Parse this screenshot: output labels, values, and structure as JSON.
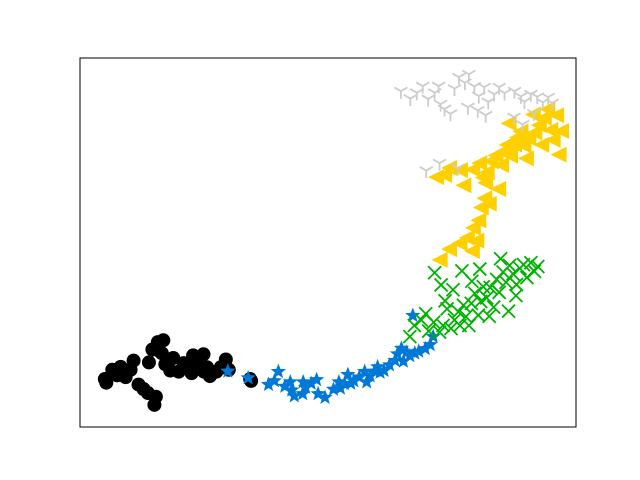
{
  "chart_data": {
    "type": "scatter",
    "title": "",
    "xlabel": "",
    "ylabel": "",
    "xlim": [
      0,
      100
    ],
    "ylim": [
      0,
      100
    ],
    "axes_ticks": false,
    "grid": false,
    "legend": "none",
    "series": [
      {
        "marker": "circle",
        "color": "#000000",
        "points": [
          [
            5.0,
            13.0
          ],
          [
            5.3,
            12.0
          ],
          [
            6.5,
            15.5
          ],
          [
            7.5,
            14.0
          ],
          [
            8.2,
            16.3
          ],
          [
            9.2,
            13.5
          ],
          [
            10.2,
            15.5
          ],
          [
            10.8,
            18.0
          ],
          [
            11.8,
            11.5
          ],
          [
            12.8,
            10.3
          ],
          [
            13.7,
            9.2
          ],
          [
            15.0,
            6.0
          ],
          [
            15.3,
            8.2
          ],
          [
            13.9,
            17.5
          ],
          [
            14.6,
            21.0
          ],
          [
            15.7,
            23.0
          ],
          [
            16.5,
            20.0
          ],
          [
            17.2,
            17.0
          ],
          [
            18.2,
            15.3
          ],
          [
            18.8,
            18.7
          ],
          [
            19.9,
            15.0
          ],
          [
            20.9,
            17.3
          ],
          [
            22.0,
            16.2
          ],
          [
            22.5,
            14.6
          ],
          [
            23.0,
            19.0
          ],
          [
            24.0,
            17.5
          ],
          [
            24.9,
            19.7
          ],
          [
            25.6,
            16.2
          ],
          [
            26.2,
            13.8
          ],
          [
            27.5,
            15.0
          ],
          [
            28.4,
            16.2
          ],
          [
            29.4,
            18.3
          ],
          [
            30.0,
            15.5
          ],
          [
            16.8,
            23.5
          ],
          [
            16.0,
            20.6
          ],
          [
            22.8,
            19.4
          ],
          [
            25.0,
            15.0
          ],
          [
            34.5,
            12.5
          ],
          [
            34.3,
            13.0
          ]
        ]
      },
      {
        "marker": "star",
        "color": "#0078d7",
        "points": [
          [
            29.8,
            15.1
          ],
          [
            33.9,
            13.3
          ],
          [
            38.0,
            11.5
          ],
          [
            39.2,
            12.5
          ],
          [
            40.0,
            15.0
          ],
          [
            41.3,
            11.0
          ],
          [
            42.4,
            12.2
          ],
          [
            43.2,
            8.4
          ],
          [
            42.7,
            10.0
          ],
          [
            44.9,
            9.0
          ],
          [
            45.5,
            10.7
          ],
          [
            45.0,
            12.2
          ],
          [
            46.6,
            11.8
          ],
          [
            47.7,
            12.8
          ],
          [
            48.0,
            9.0
          ],
          [
            49.4,
            8.0
          ],
          [
            51.1,
            10.2
          ],
          [
            52.2,
            12.2
          ],
          [
            52.5,
            10.5
          ],
          [
            53.3,
            11.7
          ],
          [
            54.0,
            14.2
          ],
          [
            54.6,
            11.8
          ],
          [
            55.2,
            12.5
          ],
          [
            56.3,
            13.5
          ],
          [
            57.4,
            15.0
          ],
          [
            57.8,
            12.2
          ],
          [
            58.5,
            13.8
          ],
          [
            59.4,
            15.1
          ],
          [
            60.0,
            16.3
          ],
          [
            60.5,
            14.8
          ],
          [
            61.3,
            15.3
          ],
          [
            62.4,
            16.8
          ],
          [
            63.5,
            18.0
          ],
          [
            64.0,
            19.8
          ],
          [
            64.8,
            21.3
          ],
          [
            65.9,
            20.3
          ],
          [
            66.5,
            19.3
          ],
          [
            67.5,
            20.0
          ],
          [
            69.6,
            21.2
          ],
          [
            70.6,
            22.3
          ],
          [
            71.2,
            24.5
          ],
          [
            67.1,
            30.2
          ],
          [
            68.3,
            20.5
          ],
          [
            65.2,
            17.8
          ]
        ]
      },
      {
        "marker": "x",
        "color": "#00b200",
        "points": [
          [
            66.5,
            24.5
          ],
          [
            67.4,
            27.5
          ],
          [
            68.8,
            29.0
          ],
          [
            69.7,
            30.7
          ],
          [
            70.3,
            26.0
          ],
          [
            71.3,
            28.4
          ],
          [
            72.5,
            25.7
          ],
          [
            73.2,
            27.5
          ],
          [
            74.0,
            32.0
          ],
          [
            74.8,
            26.7
          ],
          [
            75.5,
            29.0
          ],
          [
            76.3,
            31.2
          ],
          [
            76.6,
            27.5
          ],
          [
            77.3,
            33.0
          ],
          [
            77.8,
            29.9
          ],
          [
            78.4,
            27.5
          ],
          [
            78.9,
            33.5
          ],
          [
            79.6,
            36.2
          ],
          [
            80.3,
            30.3
          ],
          [
            80.8,
            34.0
          ],
          [
            81.3,
            38.0
          ],
          [
            82.0,
            35.0
          ],
          [
            82.7,
            37.8
          ],
          [
            83.4,
            32.5
          ],
          [
            84.0,
            40.0
          ],
          [
            84.5,
            36.5
          ],
          [
            85.3,
            42.0
          ],
          [
            85.9,
            39.2
          ],
          [
            86.6,
            43.8
          ],
          [
            87.3,
            41.5
          ],
          [
            88.0,
            38.6
          ],
          [
            88.7,
            43.0
          ],
          [
            89.4,
            44.0
          ],
          [
            90.1,
            40.5
          ],
          [
            90.9,
            44.5
          ],
          [
            91.6,
            42.2
          ],
          [
            92.3,
            43.5
          ],
          [
            71.5,
            41.8
          ],
          [
            72.8,
            38.5
          ],
          [
            73.6,
            34.2
          ],
          [
            75.2,
            37.2
          ],
          [
            79.0,
            39.5
          ],
          [
            82.5,
            30.0
          ],
          [
            84.8,
            45.6
          ],
          [
            86.4,
            31.4
          ],
          [
            87.9,
            35.6
          ],
          [
            77.0,
            42.3
          ],
          [
            80.6,
            42.8
          ]
        ]
      },
      {
        "marker": "triangle-left",
        "color": "#ffd000",
        "points": [
          [
            72.5,
            45.3
          ],
          [
            74.4,
            48.2
          ],
          [
            76.5,
            49.8
          ],
          [
            78.0,
            51.3
          ],
          [
            79.0,
            47.7
          ],
          [
            79.9,
            50.5
          ],
          [
            79.2,
            54.0
          ],
          [
            80.3,
            56.0
          ],
          [
            80.8,
            59.5
          ],
          [
            81.5,
            62.0
          ],
          [
            82.4,
            60.5
          ],
          [
            81.7,
            66.2
          ],
          [
            81.2,
            67.6
          ],
          [
            82.0,
            69.0
          ],
          [
            71.8,
            67.7
          ],
          [
            73.4,
            68.3
          ],
          [
            74.4,
            70.2
          ],
          [
            76.6,
            69.6
          ],
          [
            77.3,
            65.5
          ],
          [
            79.1,
            69.8
          ],
          [
            80.5,
            71.5
          ],
          [
            82.8,
            72.0
          ],
          [
            83.8,
            73.6
          ],
          [
            84.9,
            71.0
          ],
          [
            85.3,
            74.7
          ],
          [
            86.0,
            76.5
          ],
          [
            86.7,
            73.5
          ],
          [
            87.5,
            76.5
          ],
          [
            88.1,
            78.5
          ],
          [
            88.8,
            80.1
          ],
          [
            89.4,
            76.3
          ],
          [
            90.4,
            78.2
          ],
          [
            91.6,
            79.8
          ],
          [
            92.5,
            81.8
          ],
          [
            93.0,
            76.5
          ],
          [
            93.5,
            83.8
          ],
          [
            94.2,
            86.1
          ],
          [
            94.8,
            80.5
          ],
          [
            95.3,
            77.8
          ],
          [
            96.0,
            84.5
          ],
          [
            96.5,
            73.8
          ],
          [
            97.0,
            80.2
          ],
          [
            89.9,
            72.8
          ],
          [
            84.3,
            64.5
          ],
          [
            86.4,
            82.3
          ],
          [
            91.3,
            84.7
          ]
        ]
      },
      {
        "marker": "tri-down",
        "color": "#cccccc",
        "points": [
          [
            64.7,
            91.0
          ],
          [
            66.6,
            89.0
          ],
          [
            67.9,
            90.6
          ],
          [
            69.1,
            92.4
          ],
          [
            70.2,
            88.9
          ],
          [
            71.5,
            90.6
          ],
          [
            72.7,
            87.5
          ],
          [
            73.5,
            86.2
          ],
          [
            74.7,
            84.9
          ],
          [
            72.3,
            92.4
          ],
          [
            75.5,
            91.7
          ],
          [
            76.4,
            94.8
          ],
          [
            77.6,
            93.3
          ],
          [
            78.4,
            95.6
          ],
          [
            79.5,
            92.3
          ],
          [
            80.4,
            89.7
          ],
          [
            81.5,
            92.1
          ],
          [
            82.3,
            88.1
          ],
          [
            83.5,
            90.2
          ],
          [
            84.5,
            92.1
          ],
          [
            85.6,
            90.5
          ],
          [
            87.6,
            91.0
          ],
          [
            88.9,
            89.6
          ],
          [
            89.6,
            88.2
          ],
          [
            90.9,
            90.2
          ],
          [
            92.2,
            89.5
          ],
          [
            93.3,
            88.0
          ],
          [
            94.4,
            89.4
          ],
          [
            95.2,
            87.8
          ],
          [
            91.5,
            85.0
          ],
          [
            89.2,
            82.0
          ],
          [
            87.5,
            84.0
          ],
          [
            81.8,
            84.5
          ],
          [
            80.2,
            85.8
          ],
          [
            78.2,
            86.7
          ],
          [
            72.5,
            71.5
          ],
          [
            69.8,
            69.5
          ],
          [
            76.2,
            70.2
          ]
        ]
      }
    ]
  }
}
